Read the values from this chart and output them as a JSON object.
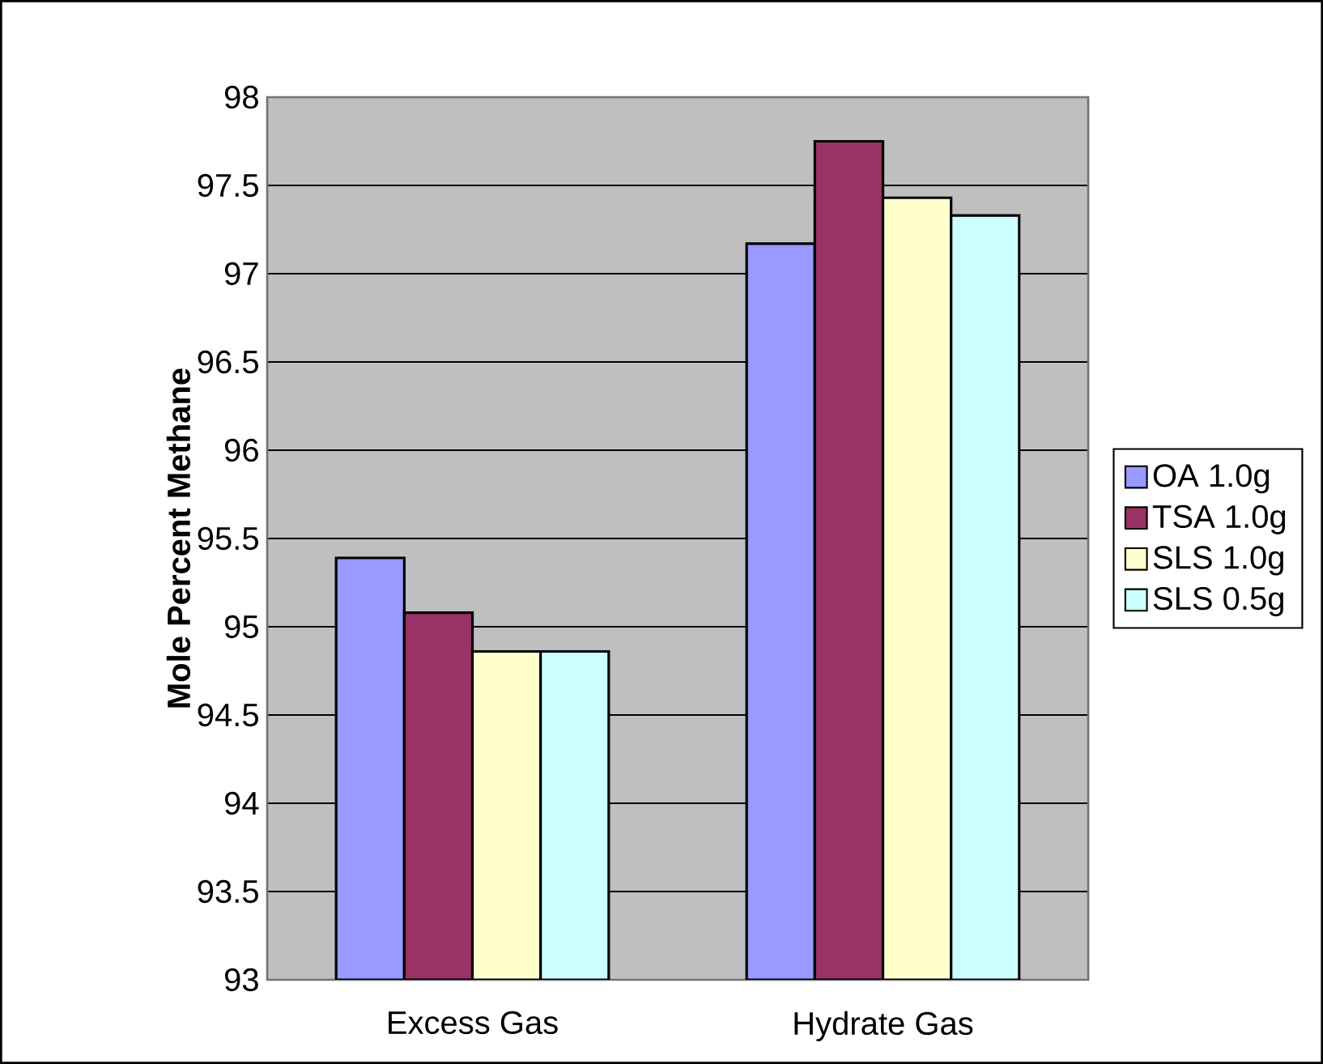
{
  "chart_data": {
    "type": "bar",
    "ylabel": "Mole Percent Methane",
    "categories": [
      "Excess Gas",
      "Hydrate Gas"
    ],
    "series": [
      {
        "name": "OA 1.0g",
        "color": "#9999ff",
        "values": [
          95.39,
          97.17
        ]
      },
      {
        "name": "TSA 1.0g",
        "color": "#993366",
        "values": [
          95.08,
          97.75
        ]
      },
      {
        "name": "SLS 1.0g",
        "color": "#ffffcc",
        "values": [
          94.86,
          97.43
        ]
      },
      {
        "name": "SLS 0.5g",
        "color": "#ccffff",
        "values": [
          94.86,
          97.33
        ]
      }
    ],
    "ylim": [
      93,
      98
    ],
    "yticks": [
      93,
      93.5,
      94,
      94.5,
      95,
      95.5,
      96,
      96.5,
      97,
      97.5,
      98
    ],
    "grid": "y",
    "legend": "right"
  }
}
